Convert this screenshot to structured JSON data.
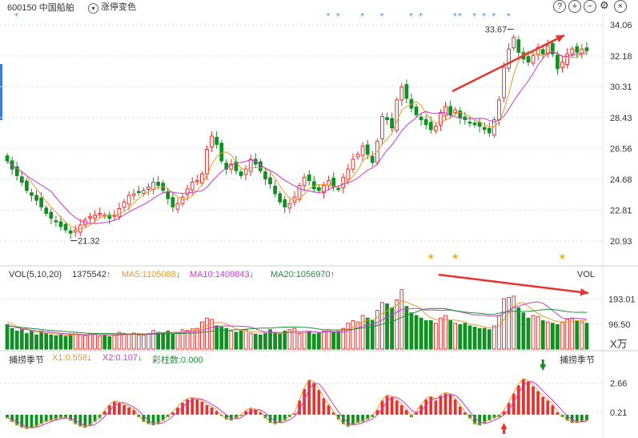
{
  "header": {
    "stock_code": "600150",
    "stock_name": "中国船舶",
    "toggle_label": "涨停变色",
    "icons": [
      "help-icon",
      "plus-icon",
      "minus-icon",
      "gear-icon",
      "close-icon"
    ]
  },
  "price_panel": {
    "y_ticks": [
      "34.06",
      "32.18",
      "30.31",
      "28.43",
      "26.56",
      "24.68",
      "22.81",
      "20.93"
    ],
    "high_label": "33.67",
    "low_label": "21.32"
  },
  "volume_panel": {
    "title": "VOL(5,10,20)",
    "value": "1375542",
    "ma5_label": "MA5:1105088",
    "ma10_label": "MA10:1409843",
    "ma20_label": "MA20:1056970",
    "corner_label": "VOL",
    "y_ticks": [
      "193.01",
      "96.50"
    ],
    "unit": "X万"
  },
  "indicator_panel": {
    "title": "捕捞季节",
    "x1_label": "X1:0.558",
    "x2_label": "X2:0.107",
    "bar_label": "彩柱数:0.000",
    "corner_label": "捕捞季节",
    "y_ticks": [
      "2.66",
      "0.21"
    ]
  },
  "colors": {
    "up": "#e8322e",
    "down": "#119022",
    "ma5": "#e69a2a",
    "ma10": "#c83ad0",
    "ma20": "#1f8f3a",
    "arrow": "#e8322e",
    "grid": "#dddddd",
    "star": "#f2b51b",
    "marker": "#3d8fd6"
  },
  "chart_data": {
    "type": "candlestick",
    "count": 120,
    "ylim": [
      20.0,
      34.8
    ],
    "close": [
      25.8,
      25.3,
      24.9,
      24.5,
      24.0,
      23.7,
      23.4,
      23.0,
      22.6,
      22.3,
      22.1,
      21.8,
      21.6,
      21.4,
      21.6,
      21.9,
      22.2,
      22.4,
      22.5,
      22.6,
      22.5,
      22.3,
      22.5,
      22.9,
      23.3,
      23.7,
      23.8,
      23.9,
      24.0,
      24.2,
      24.5,
      24.3,
      24.0,
      23.5,
      23.0,
      23.2,
      23.6,
      24.1,
      24.5,
      24.6,
      25.0,
      26.5,
      27.3,
      26.8,
      25.8,
      25.3,
      25.6,
      25.2,
      24.9,
      25.3,
      25.9,
      25.6,
      25.2,
      24.7,
      24.4,
      23.8,
      23.3,
      23.0,
      23.2,
      23.6,
      24.3,
      24.8,
      24.6,
      24.1,
      24.0,
      24.3,
      24.6,
      24.2,
      24.1,
      24.8,
      25.3,
      25.9,
      26.2,
      26.7,
      26.2,
      25.7,
      27.0,
      28.5,
      28.3,
      27.8,
      29.5,
      30.3,
      29.6,
      29.0,
      28.6,
      28.3,
      28.0,
      27.7,
      27.9,
      28.7,
      29.1,
      28.6,
      28.9,
      28.4,
      28.3,
      28.1,
      28.0,
      27.9,
      27.7,
      27.5,
      28.3,
      29.5,
      31.5,
      32.6,
      33.3,
      32.4,
      32.0,
      31.8,
      32.2,
      32.7,
      32.3,
      32.8,
      32.3,
      31.4,
      31.8,
      32.3,
      32.6,
      32.4,
      32.6,
      32.5
    ],
    "volume": [
      95,
      80,
      70,
      75,
      60,
      70,
      55,
      70,
      60,
      55,
      52,
      55,
      50,
      58,
      65,
      55,
      52,
      60,
      58,
      50,
      55,
      48,
      52,
      65,
      60,
      58,
      62,
      55,
      55,
      60,
      72,
      65,
      60,
      70,
      58,
      65,
      75,
      72,
      78,
      80,
      105,
      120,
      115,
      90,
      85,
      80,
      70,
      65,
      70,
      75,
      62,
      58,
      55,
      60,
      75,
      65,
      58,
      70,
      75,
      80,
      60,
      65,
      70,
      58,
      62,
      70,
      75,
      65,
      70,
      80,
      100,
      110,
      105,
      130,
      120,
      110,
      150,
      180,
      175,
      160,
      190,
      230,
      165,
      140,
      130,
      120,
      110,
      110,
      100,
      120,
      130,
      110,
      100,
      95,
      100,
      90,
      85,
      80,
      80,
      75,
      90,
      130,
      195,
      200,
      205,
      160,
      140,
      120,
      130,
      125,
      110,
      105,
      100,
      95,
      105,
      115,
      120,
      110,
      105,
      100
    ],
    "ma5": [
      104.4,
      98.4,
      86,
      79,
      80,
      71,
      66,
      66,
      62,
      62,
      58.4,
      58.4,
      54.4,
      54,
      56.4,
      56.6,
      56,
      58,
      58,
      55,
      55,
      54.2,
      52.6,
      53.6,
      56,
      56.6,
      59.4,
      60,
      58,
      58,
      60.8,
      63.4,
      63.8,
      64.4,
      65,
      63.6,
      65.6,
      68,
      69.6,
      74,
      82,
      91,
      99.6,
      102,
      103,
      98,
      88,
      78,
      74,
      72,
      68.4,
      66,
      64,
      64,
      66,
      63,
      61.6,
      62.6,
      68.6,
      71,
      68.6,
      70,
      70.2,
      66.6,
      63,
      65,
      69.2,
      68,
      68.4,
      72,
      78,
      85,
      93,
      105,
      113,
      114,
      122,
      138,
      147,
      159,
      171,
      187,
      182,
      173,
      167,
      157,
      133,
      122,
      114,
      112,
      114,
      114,
      112,
      109,
      105,
      97,
      94,
      90,
      85,
      82,
      82,
      91,
      114,
      140,
      164,
      178,
      180,
      165,
      151,
      137,
      127,
      120,
      112,
      107,
      103,
      104,
      107,
      109,
      111,
      110
    ],
    "ma10": [
      91.6,
      89.2,
      83.4,
      78.6,
      75.5,
      73.1,
      70.5,
      69.2,
      67.2,
      65.8,
      63.4,
      60.9,
      59.9,
      58.7,
      57.3,
      56.2,
      55.2,
      55.6,
      56.2,
      55.8,
      55.5,
      55.3,
      55.5,
      55.6,
      56.2,
      56.6,
      57.6,
      57.9,
      57.2,
      57.9,
      61,
      61.8,
      63,
      63.9,
      63.7,
      64.5,
      65,
      66.1,
      66.7,
      68.8,
      72.8,
      78.3,
      83.8,
      85.8,
      89.3,
      90,
      89.5,
      88.8,
      88.1,
      87.6,
      85.1,
      78.9,
      71,
      66.9,
      65.9,
      64.9,
      63.8,
      63.1,
      63.8,
      64.9,
      64.4,
      65.1,
      66.6,
      66.4,
      65.1,
      65.6,
      67.3,
      66.8,
      66.3,
      66.3,
      70.3,
      76.3,
      82.5,
      89,
      93.5,
      96.5,
      101.8,
      113.1,
      123.6,
      131.6,
      142.6,
      154.6,
      155.1,
      156.1,
      157.4,
      154.3,
      150.4,
      151.5,
      151.4,
      149.6,
      150.7,
      150.5,
      148,
      144.3,
      140.3,
      136.1,
      131.7,
      132.1,
      130.6,
      128.1,
      127.6,
      129,
      139,
      149.5,
      160.5,
      166.5,
      171.9,
      176.9,
      181,
      182.5,
      177.5,
      165,
      149.5,
      134.1,
      120.1,
      117.2,
      118.2,
      119,
      117.6,
      115.5
    ],
    "ma20": [
      90,
      88,
      86,
      84,
      82,
      80,
      78,
      76,
      74,
      72.5,
      71,
      69.5,
      68,
      66.5,
      65,
      63.5,
      62,
      61,
      60.5,
      60.5,
      60.5,
      60,
      59.6,
      59,
      58.7,
      58.3,
      58.3,
      58,
      57.8,
      57.9,
      58.1,
      58.6,
      59.1,
      59.5,
      59.7,
      60.3,
      60.5,
      61.1,
      61.4,
      62.2,
      64.3,
      66.7,
      69.6,
      71,
      71.9,
      73.1,
      73.9,
      74.8,
      75.5,
      77.1,
      78.5,
      79.6,
      81.2,
      81.3,
      81.1,
      82.9,
      84.5,
      85.1,
      84.9,
      85.6,
      84.7,
      84.6,
      82.5,
      80.6,
      77.5,
      75.2,
      74.6,
      73.9,
      74.3,
      75,
      75.6,
      76.3,
      79.6,
      82.4,
      84.7,
      86.5,
      91.3,
      96.6,
      101.5,
      106.2,
      114,
      122.8,
      130.7,
      137.6,
      143.7,
      150.8,
      155.3,
      156.8,
      157.3,
      157.6,
      156.2,
      152.4,
      148.7,
      145.8,
      143.3,
      141.2,
      139.7,
      138.5,
      136.5,
      134.1,
      134.6,
      138.9,
      142.5,
      145.2,
      146.4,
      145.7,
      145.6,
      146,
      147.5,
      149.7,
      152.6,
      153.7,
      153.1,
      150.8,
      148.1,
      144.8,
      142.9,
      142.2,
      142.6,
      141.8
    ],
    "vol_ylim": [
      0,
      260
    ],
    "osc": [
      -0.3,
      -0.6,
      -0.9,
      -1.1,
      -1.2,
      -1.15,
      -1.0,
      -0.8,
      -0.6,
      -0.5,
      -0.4,
      -0.3,
      -0.3,
      -0.5,
      -0.8,
      -1.0,
      -1.1,
      -0.9,
      -0.6,
      -0.3,
      0.3,
      0.8,
      1.1,
      1.0,
      0.8,
      0.6,
      0.4,
      -0.2,
      -0.6,
      -0.8,
      -0.9,
      -0.8,
      -0.5,
      -0.2,
      0.2,
      0.6,
      1.0,
      1.3,
      1.4,
      1.3,
      1.1,
      0.8,
      0.6,
      0.3,
      -0.1,
      -0.4,
      -0.5,
      -0.3,
      -0.1,
      0.3,
      0.5,
      0.4,
      0.2,
      -0.3,
      -0.7,
      -0.8,
      -0.7,
      -0.5,
      -0.2,
      0.1,
      1.2,
      2.2,
      2.9,
      2.7,
      2.1,
      1.4,
      0.8,
      0.2,
      -0.4,
      -0.8,
      -1.0,
      -0.9,
      -0.7,
      -0.6,
      -0.4,
      -0.2,
      0.4,
      1.2,
      1.6,
      1.5,
      1.2,
      0.8,
      0.4,
      -0.2,
      0.2,
      0.8,
      1.3,
      1.5,
      1.2,
      1.6,
      1.8,
      1.7,
      1.3,
      0.7,
      0.2,
      -0.3,
      -0.8,
      -0.9,
      -0.7,
      -0.5,
      -0.3,
      -0.2,
      0.3,
      1.0,
      1.8,
      2.5,
      3.0,
      2.8,
      2.4,
      2.0,
      1.5,
      1.2,
      0.8,
      0.2,
      -0.2,
      -0.5,
      -0.7,
      -0.7,
      -0.6,
      -0.5
    ],
    "osc_ylim": [
      -1.5,
      4.2
    ],
    "stars": [
      87,
      92,
      114
    ],
    "top_markers": [
      66,
      68,
      73,
      77,
      83,
      85,
      92,
      93,
      96,
      98,
      100,
      103
    ]
  }
}
